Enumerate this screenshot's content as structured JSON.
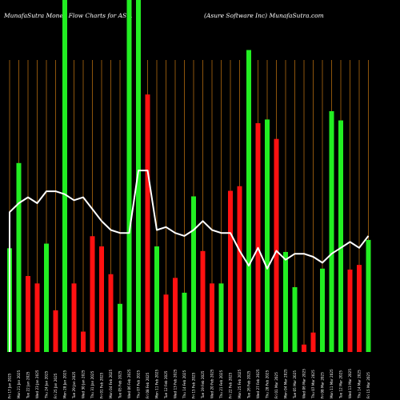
{
  "chart_data": {
    "type": "bar",
    "title_left": "MunafaSutra  Money Flow  Charts for AS…",
    "title_right": "(Asure   Software   Inc) MunafaSutra.com",
    "colors": {
      "up": "#22ee22",
      "down": "#ff1111",
      "line": "#ffffff",
      "grid": "#b06a10",
      "background": "#000000"
    },
    "grid": true,
    "categories": [
      "Fri 17 Jan 2025",
      "Mon 21 Jan 2025",
      "Tue 22 Jan 2025",
      "Wed 23 Jan 2025",
      "Thu 24 Jan 2025",
      "Fri 25 Jan 2025",
      "Mon 28 Jan 2025",
      "Tue 29 Jan 2025",
      "Wed 30 Jan 2025",
      "Thu 31 Jan 2025",
      "Fri 01 Feb 2025",
      "Mon 04 Feb 2025",
      "Tue 05 Feb 2025",
      "Wed 06 Feb 2025",
      "Thu 07 Feb 2025",
      "Fri 08 Feb 2025",
      "Mon 11 Feb 2025",
      "Tue 12 Feb 2025",
      "Wed 13 Feb 2025",
      "Thu 14 Feb 2025",
      "Fri 15 Feb 2025",
      "Tue 19 Feb 2025",
      "Wed 20 Feb 2025",
      "Thu 21 Feb 2025",
      "Fri 22 Feb 2025",
      "Mon 25 Feb 2025",
      "Tue 26 Feb 2025",
      "Wed 27 Feb 2025",
      "Thu 28 Feb 2025",
      "Fri 01 Mar 2025",
      "Mon 04 Mar 2025",
      "Tue 05 Mar 2025",
      "Wed 06 Mar 2025",
      "Thu 07 Mar 2025",
      "Fri 08 Mar 2025",
      "Mon 11 Mar 2025",
      "Tue 12 Mar 2025",
      "Wed 13 Mar 2025",
      "Thu 14 Mar 2025",
      "Fri 15 Mar 2025"
    ],
    "values": [
      112,
      204,
      82,
      74,
      117,
      45,
      380,
      74,
      22,
      125,
      114,
      84,
      52,
      380,
      380,
      278,
      114,
      62,
      80,
      64,
      168,
      109,
      74,
      74,
      174,
      179,
      326,
      247,
      251,
      230,
      108,
      70,
      8,
      21,
      90,
      260,
      250,
      89,
      94,
      121
    ],
    "directions": [
      "up",
      "up",
      "down",
      "down",
      "up",
      "down",
      "up",
      "down",
      "down",
      "down",
      "down",
      "down",
      "up",
      "up",
      "up",
      "down",
      "up",
      "down",
      "down",
      "up",
      "up",
      "down",
      "down",
      "up",
      "down",
      "down",
      "up",
      "down",
      "up",
      "down",
      "up",
      "up",
      "down",
      "down",
      "up",
      "up",
      "up",
      "down",
      "down",
      "up"
    ],
    "line": [
      47,
      50,
      52,
      50,
      54,
      54,
      53,
      51,
      52,
      48,
      44,
      41,
      40,
      40,
      61,
      61,
      41,
      42,
      40,
      39,
      41,
      44,
      41,
      40,
      40,
      34,
      29,
      35,
      28,
      34,
      31,
      33,
      33,
      32,
      30,
      33,
      35,
      37,
      35,
      39
    ],
    "ylim": [
      0,
      380
    ],
    "line_ylim": [
      0,
      100
    ]
  }
}
